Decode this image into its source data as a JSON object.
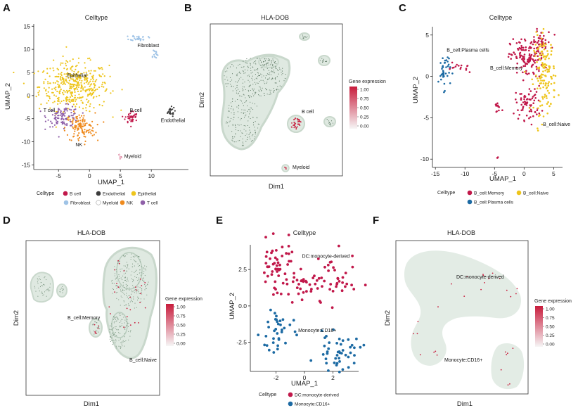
{
  "colors": {
    "B cell": "#c1184a",
    "Endothelial": "#3b3b3b",
    "Epithelial": "#eec51c",
    "Fibroblast": "#9fc3e6",
    "Myeloid": "#ffffff",
    "NK": "#ef8a1d",
    "T cell": "#8f60a8",
    "B_cell:Memory": "#c1184a",
    "B_cell:Naive": "#eec51c",
    "B_cell:Plasma cells": "#1c6aa3",
    "DC:monocyte-derived": "#c1184a",
    "Monocyte:CD16+": "#1c6aa3",
    "density": "#dfe9e1",
    "expr_low": "#f6f6f6",
    "expr_high": "#c81c3c"
  },
  "chart_data": [
    {
      "panel": "A",
      "type": "scatter",
      "title": "Celltype",
      "xlabel": "UMAP_1",
      "ylabel": "UMAP_2",
      "xlim": [
        -9,
        16
      ],
      "ylim": [
        -16,
        15.5
      ],
      "xticks": [
        -5,
        0,
        5,
        10
      ],
      "yticks": [
        -15,
        -10,
        -5,
        0,
        5,
        10,
        15
      ],
      "clusters": [
        {
          "name": "Epithelial",
          "label": "Epithelial",
          "cx": -2.5,
          "cy": 2,
          "sx": 2.8,
          "sy": 2.6,
          "n": 420
        },
        {
          "name": "T cell",
          "label": "T cell",
          "cx": -4.2,
          "cy": -4.5,
          "sx": 1.3,
          "sy": 1.1,
          "n": 110
        },
        {
          "name": "NK",
          "label": "NK",
          "cx": -1.5,
          "cy": -7,
          "sx": 1.2,
          "sy": 1.6,
          "n": 120
        },
        {
          "name": "B cell",
          "label": "B cell",
          "cx": 6.8,
          "cy": -4.7,
          "sx": 0.5,
          "sy": 0.7,
          "n": 45
        },
        {
          "name": "Fibroblast",
          "label": "Fibroblast",
          "cx": 8,
          "cy": 12.5,
          "sx": 0.7,
          "sy": 0.3,
          "n": 30
        },
        {
          "name": "Fibroblast",
          "label": "",
          "cx": 10.5,
          "cy": 9,
          "sx": 0.3,
          "sy": 0.6,
          "n": 15
        },
        {
          "name": "Endothelial",
          "label": "Endothelial",
          "cx": 13,
          "cy": -3.5,
          "sx": 0.4,
          "sy": 0.5,
          "n": 25
        },
        {
          "name": "Myeloid",
          "label": "Myeloid",
          "cx": 4.9,
          "cy": -13.5,
          "sx": 0.1,
          "sy": 0.4,
          "n": 4
        }
      ],
      "labels": [
        {
          "text": "Fibroblast",
          "x": 9.5,
          "y": 10.5
        },
        {
          "text": "Epithelial",
          "x": -2,
          "y": 4
        },
        {
          "text": "T cell",
          "x": -6.5,
          "y": -3.5
        },
        {
          "text": "B cell",
          "x": 7.5,
          "y": -3.5
        },
        {
          "text": "Endothelial",
          "x": 13.5,
          "y": -5.7
        },
        {
          "text": "NK",
          "x": -1.7,
          "y": -11
        },
        {
          "text": "Myeloid",
          "x": 7,
          "y": -13.5
        }
      ],
      "legend_title": "Celltype",
      "legend": [
        "B cell",
        "Endothelial",
        "Epithelial",
        "Fibroblast",
        "Myeloid",
        "NK",
        "T cell"
      ]
    },
    {
      "panel": "B",
      "type": "density-scatter",
      "title": "HLA-DOB",
      "xlabel": "Dim1",
      "ylabel": "Dim2",
      "legend_title": "Gene expression",
      "legend_ticks": [
        "1.00",
        "0.75",
        "0.50",
        "0.25",
        "0.00"
      ],
      "labels": [
        "B cell",
        "Myeloid"
      ]
    },
    {
      "panel": "C",
      "type": "scatter",
      "title": "Celltype",
      "xlabel": "UMAP_1",
      "ylabel": "UMAP_2",
      "xlim": [
        -15.5,
        6.5
      ],
      "ylim": [
        -11,
        6
      ],
      "xticks": [
        -15,
        -10,
        -5,
        0,
        5
      ],
      "yticks": [
        -10,
        -5,
        0,
        5
      ],
      "clusters": [
        {
          "name": "B_cell:Memory",
          "cx": 0.5,
          "cy": 2.2,
          "sx": 1.4,
          "sy": 1.2,
          "n": 130
        },
        {
          "name": "B_cell:Memory",
          "cx": 0.7,
          "cy": -3.2,
          "sx": 1.1,
          "sy": 1,
          "n": 70
        },
        {
          "name": "B_cell:Memory",
          "cx": 2.8,
          "cy": 4.2,
          "sx": 0.9,
          "sy": 0.7,
          "n": 40
        },
        {
          "name": "B_cell:Naive",
          "cx": 3.5,
          "cy": 0.2,
          "sx": 0.9,
          "sy": 2.3,
          "n": 140
        },
        {
          "name": "B_cell:Plasma cells",
          "cx": -13.5,
          "cy": 0.7,
          "sx": 0.5,
          "sy": 1.1,
          "n": 40
        },
        {
          "name": "B_cell:Memory",
          "cx": -11.5,
          "cy": 1,
          "sx": 0.6,
          "sy": 0.3,
          "n": 10
        },
        {
          "name": "B_cell:Memory",
          "cx": -9.5,
          "cy": 1,
          "sx": 0.2,
          "sy": 0.3,
          "n": 5
        },
        {
          "name": "B_cell:Memory",
          "cx": -4.5,
          "cy": -3.8,
          "sx": 0.3,
          "sy": 0.4,
          "n": 12
        },
        {
          "name": "B_cell:Memory",
          "cx": -4.5,
          "cy": -9.8,
          "sx": 0.05,
          "sy": 0.2,
          "n": 3
        }
      ],
      "labels": [
        {
          "text": "B_cell:Plasma cells",
          "x": -9.5,
          "y": 3
        },
        {
          "text": "B_cell:Memory",
          "x": -3,
          "y": 0.8
        },
        {
          "text": "B_cell:Naive",
          "x": 5.5,
          "y": -6
        }
      ],
      "legend_title": "Celltype",
      "legend": [
        "B_cell:Memory",
        "B_cell:Naive",
        "B_cell:Plasma cells"
      ]
    },
    {
      "panel": "D",
      "type": "density-scatter",
      "title": "HLA-DOB",
      "xlabel": "Dim1",
      "ylabel": "Dim2",
      "legend_title": "Gene expression",
      "legend_ticks": [
        "1.00",
        "0.75",
        "0.50",
        "0.25",
        "0.00"
      ],
      "labels": [
        "B_cell:Memory",
        "B_cell:Naive"
      ]
    },
    {
      "panel": "E",
      "type": "scatter",
      "title": "Celltype",
      "xlabel": "UMAP_1",
      "ylabel": "UMAP_2",
      "xlim": [
        -3.8,
        3.8
      ],
      "ylim": [
        -4.5,
        4.2
      ],
      "xticks": [
        -2,
        0,
        2
      ],
      "yticks": [
        -2.5,
        0.0,
        2.5
      ],
      "clusters": [
        {
          "name": "DC:monocyte-derived",
          "cx": -1.9,
          "cy": 2.8,
          "sx": 0.7,
          "sy": 0.8,
          "n": 50
        },
        {
          "name": "DC:monocyte-derived",
          "cx": 0.2,
          "cy": 1.2,
          "sx": 0.9,
          "sy": 0.7,
          "n": 35
        },
        {
          "name": "DC:monocyte-derived",
          "cx": 2.2,
          "cy": 1.8,
          "sx": 0.7,
          "sy": 0.9,
          "n": 30
        },
        {
          "name": "Monocyte:CD16+",
          "cx": -1.9,
          "cy": -1.8,
          "sx": 0.6,
          "sy": 1,
          "n": 35
        },
        {
          "name": "Monocyte:CD16+",
          "cx": 2.4,
          "cy": -3.2,
          "sx": 0.8,
          "sy": 0.6,
          "n": 45
        }
      ],
      "labels": [
        {
          "text": "DC:monocyte-derived",
          "x": 1.5,
          "y": 3.3
        },
        {
          "text": "Monocyte:CD16+",
          "x": 0.9,
          "y": -1.8
        }
      ],
      "legend_title": "Celltype",
      "legend": [
        "DC:monocyte-derived",
        "Monocyte:CD16+"
      ]
    },
    {
      "panel": "F",
      "type": "density-scatter",
      "title": "HLA-DOB",
      "xlabel": "Dim1",
      "ylabel": "Dim2",
      "legend_title": "Gene expression",
      "legend_ticks": [
        "1.00",
        "0.75",
        "0.50",
        "0.25",
        "0.00"
      ],
      "labels": [
        "DC:monocyte-derived",
        "Monocyte:CD16+"
      ]
    }
  ]
}
